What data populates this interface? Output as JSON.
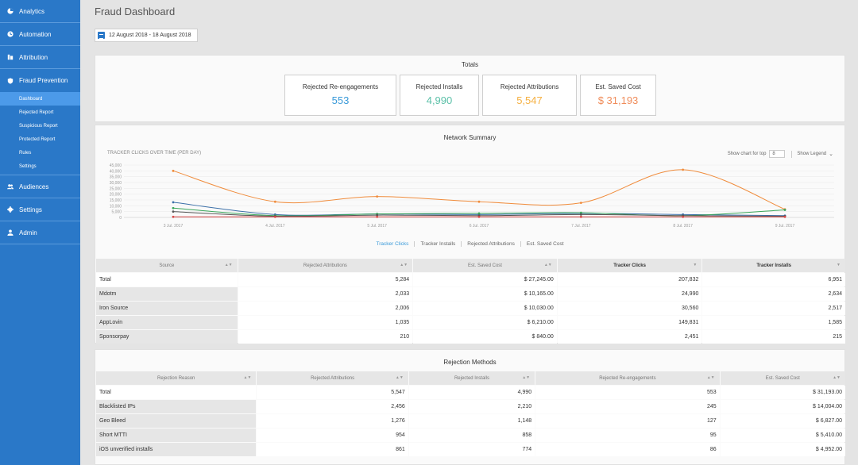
{
  "sidebar": {
    "items": [
      {
        "label": "Analytics",
        "icon": "analytics-icon"
      },
      {
        "label": "Automation",
        "icon": "clock-icon"
      },
      {
        "label": "Attribution",
        "icon": "attribution-icon"
      },
      {
        "label": "Fraud Prevention",
        "icon": "shield-icon"
      }
    ],
    "sub_items": [
      "Dashboard",
      "Rejected Report",
      "Suspicious Report",
      "Protected Report",
      "Rules",
      "Settings"
    ],
    "lower_items": [
      {
        "label": "Audiences",
        "icon": "users-icon"
      },
      {
        "label": "Settings",
        "icon": "gear-icon"
      },
      {
        "label": "Admin",
        "icon": "user-icon"
      }
    ]
  },
  "header": {
    "title": "Fraud Dashboard",
    "date_range": "12 August 2018 - 18 August 2018"
  },
  "totals": {
    "title": "Totals",
    "kpis": [
      {
        "label": "Rejected Re-engagements",
        "value": "553",
        "color": "#3a9ad9"
      },
      {
        "label": "Rejected Installs",
        "value": "4,990",
        "color": "#5bc0a8"
      },
      {
        "label": "Rejected Attributions",
        "value": "5,547",
        "color": "#f5b041"
      },
      {
        "label": "Est. Saved Cost",
        "value": "$ 31,193",
        "color": "#f08c5a"
      }
    ]
  },
  "network": {
    "title": "Network Summary",
    "chart_subtitle": "TRACKER CLICKS OVER TIME (PER DAY)",
    "show_top_label": "Show chart for top",
    "show_top_value": "8",
    "show_legend_label": "Show Legend",
    "tabs": [
      "Tracker Clicks",
      "Tracker Installs",
      "Rejected Attributions",
      "Est. Saved Cost"
    ],
    "columns": [
      "Source",
      "Rejected Attributions",
      "Est. Saved Cost",
      "Tracker Clicks",
      "Tracker Installs"
    ],
    "rows": [
      [
        "Total",
        "5,284",
        "$ 27,245.00",
        "207,832",
        "6,951"
      ],
      [
        "Mdotm",
        "2,033",
        "$ 10,165.00",
        "24,990",
        "2,634"
      ],
      [
        "Iron Source",
        "2,006",
        "$ 10,030.00",
        "30,560",
        "2,517"
      ],
      [
        "AppLovin",
        "1,035",
        "$ 6,210.00",
        "149,831",
        "1,585"
      ],
      [
        "Sponsorpay",
        "210",
        "$ 840.00",
        "2,451",
        "215"
      ]
    ]
  },
  "rejection": {
    "title": "Rejection Methods",
    "columns": [
      "Rejection Reason",
      "Rejected Attributions",
      "Rejected Installs",
      "Rejected Re-engagements",
      "Est. Saved Cost"
    ],
    "rows": [
      [
        "Total",
        "5,547",
        "4,990",
        "553",
        "$ 31,193.00"
      ],
      [
        "Blacklisted IPs",
        "2,456",
        "2,210",
        "245",
        "$ 14,004.00"
      ],
      [
        "Geo Bleed",
        "1,276",
        "1,148",
        "127",
        "$ 6,827.00"
      ],
      [
        "Short MTTI",
        "954",
        "858",
        "95",
        "$ 5,410.00"
      ],
      [
        "iOS unverified installs",
        "861",
        "774",
        "86",
        "$ 4,952.00"
      ]
    ]
  },
  "chart_data": {
    "type": "line",
    "x": [
      "3 Jul. 2017",
      "4 Jul. 2017",
      "5 Jul. 2017",
      "6 Jul. 2017",
      "7 Jul. 2017",
      "8 Jul. 2017",
      "9 Jul. 2017"
    ],
    "ylim": [
      0,
      45000
    ],
    "yticks": [
      "45,000",
      "40,000",
      "35,000",
      "30,000",
      "25,000",
      "20,000",
      "15,000",
      "10,000",
      "5,000",
      "0"
    ],
    "grid": true,
    "series": [
      {
        "color": "#f08c3c",
        "values": [
          40000,
          13500,
          18000,
          13500,
          12500,
          41000,
          7000
        ]
      },
      {
        "color": "#3b6fa8",
        "values": [
          13000,
          2500,
          3000,
          2500,
          3500,
          2500,
          1500
        ]
      },
      {
        "color": "#3aa65a",
        "values": [
          8000,
          1500,
          3000,
          3500,
          4000,
          1500,
          6500
        ]
      },
      {
        "color": "#555555",
        "values": [
          5000,
          1000,
          2000,
          1500,
          2500,
          1500,
          1000
        ]
      },
      {
        "color": "#d64545",
        "values": [
          500,
          500,
          500,
          500,
          500,
          500,
          500
        ]
      }
    ]
  }
}
